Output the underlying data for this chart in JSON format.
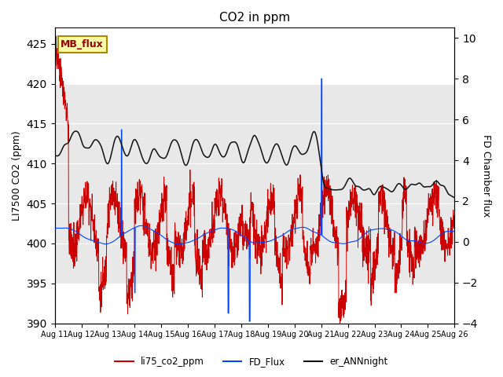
{
  "title": "CO2 in ppm",
  "ylabel_left": "LI7500 CO2 (ppm)",
  "ylabel_right": "FD Chamber flux",
  "ylim_left": [
    390,
    427
  ],
  "ylim_right": [
    -4,
    10.5
  ],
  "yticks_left": [
    390,
    395,
    400,
    405,
    410,
    415,
    420,
    425
  ],
  "yticks_right": [
    -4,
    -2,
    0,
    2,
    4,
    6,
    8,
    10
  ],
  "x_tick_labels": [
    "Aug 11",
    "Aug 12",
    "Aug 13",
    "Aug 14",
    "Aug 15",
    "Aug 16",
    "Aug 17",
    "Aug 18",
    "Aug 19",
    "Aug 20",
    "Aug 21",
    "Aug 22",
    "Aug 23",
    "Aug 24",
    "Aug 25",
    "Aug 26"
  ],
  "color_red": "#cc0000",
  "color_blue": "#0044ff",
  "color_black": "#111111",
  "legend_labels": [
    "li75_co2_ppm",
    "FD_Flux",
    "er_ANNnight"
  ],
  "annotation_text": "MB_flux",
  "annotation_color": "#990000",
  "annotation_bg": "#ffffaa",
  "annotation_border": "#aa8800",
  "background_color": "#ffffff",
  "band_color": "#e8e8e8",
  "band_ylim": [
    395,
    420
  ],
  "n_points": 2160
}
